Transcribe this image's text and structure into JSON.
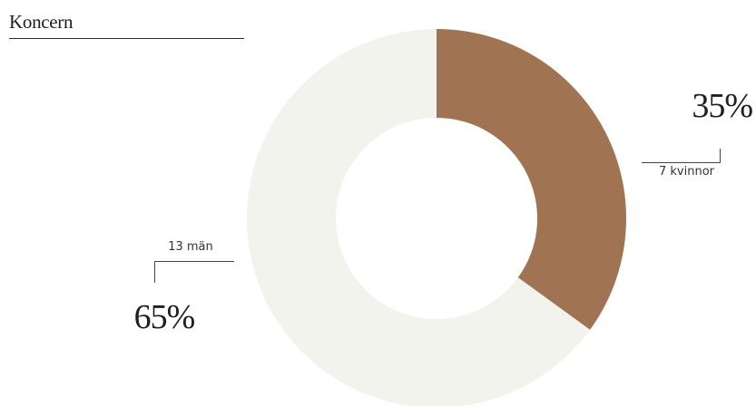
{
  "title": "Koncern",
  "chart_data": {
    "type": "pie",
    "donut": true,
    "categories": [
      "kvinnor",
      "män"
    ],
    "series": [
      {
        "values": [
          35,
          65
        ]
      }
    ],
    "counts": [
      7,
      13
    ],
    "labels": {
      "women_pct": "35%",
      "women_count": "7 kvinnor",
      "men_pct": "65%",
      "men_count": "13 män"
    },
    "colors": {
      "kvinnor": "#A07352",
      "män": "#F3F3EE"
    },
    "start_angle": "top, clockwise"
  }
}
